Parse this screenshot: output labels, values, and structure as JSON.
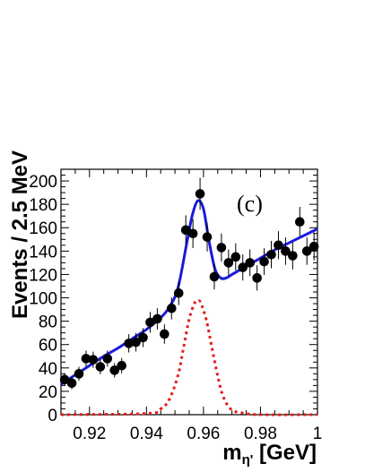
{
  "chart_data": {
    "type": "scatter",
    "panel_label": "(c)",
    "xlabel_main": "m",
    "xlabel_sub": "η'",
    "xlabel_unit": " [GeV]",
    "ylabel": "Events / 2.5 MeV",
    "xlim": [
      0.91,
      1.0
    ],
    "ylim": [
      0,
      210
    ],
    "x_ticks": [
      0.92,
      0.94,
      0.96,
      0.98,
      1.0
    ],
    "x_tick_labels": [
      "0.92",
      "0.94",
      "0.96",
      "0.98",
      "1"
    ],
    "y_ticks": [
      0,
      20,
      40,
      60,
      80,
      100,
      120,
      140,
      160,
      180,
      200
    ],
    "y_tick_labels": [
      "0",
      "20",
      "40",
      "60",
      "80",
      "100",
      "120",
      "140",
      "160",
      "180",
      "200"
    ],
    "grid": false,
    "legend": "none",
    "colors": {
      "data": "#000000",
      "fit": "#1a1adc",
      "signal": "#e61919"
    },
    "series": [
      {
        "kind": "data-points-with-errors",
        "x": [
          0.9113,
          0.9138,
          0.9163,
          0.9188,
          0.9213,
          0.9238,
          0.9263,
          0.9288,
          0.9313,
          0.9338,
          0.9363,
          0.9388,
          0.9413,
          0.9438,
          0.9463,
          0.9488,
          0.9513,
          0.9538,
          0.9563,
          0.9588,
          0.9613,
          0.9638,
          0.9663,
          0.9688,
          0.9713,
          0.9738,
          0.9763,
          0.9788,
          0.9813,
          0.9838,
          0.9863,
          0.9888,
          0.9913,
          0.9938,
          0.9963,
          0.9988
        ],
        "y": [
          30,
          27,
          35,
          48,
          47,
          41,
          48,
          38,
          42,
          61,
          62,
          66,
          79,
          82,
          69,
          91,
          104,
          158,
          155,
          189,
          152,
          118,
          143,
          130,
          135,
          126,
          130,
          117,
          131,
          137,
          145,
          140,
          136,
          165,
          140,
          144
        ],
        "yerr": [
          5.5,
          5.2,
          5.9,
          6.9,
          6.9,
          6.4,
          6.9,
          6.2,
          6.5,
          7.8,
          7.9,
          8.1,
          8.9,
          9.1,
          8.3,
          9.5,
          10.2,
          12.6,
          12.4,
          13.7,
          12.3,
          10.9,
          12.0,
          11.4,
          11.6,
          11.2,
          11.4,
          10.8,
          11.4,
          11.7,
          12.0,
          11.8,
          11.7,
          12.8,
          11.8,
          12.0
        ]
      },
      {
        "kind": "fit-total",
        "x": [
          0.91,
          0.915,
          0.92,
          0.925,
          0.93,
          0.935,
          0.94,
          0.945,
          0.948,
          0.951,
          0.954,
          0.956,
          0.958,
          0.96,
          0.962,
          0.964,
          0.966,
          0.968,
          0.97,
          0.975,
          0.98,
          0.985,
          0.99,
          0.995,
          1.0
        ],
        "y": [
          26,
          34,
          42,
          50,
          57,
          65,
          73,
          83,
          92,
          108,
          145,
          170,
          183,
          176,
          148,
          125,
          117,
          117,
          120,
          127,
          134,
          141,
          147,
          153,
          159
        ]
      },
      {
        "kind": "signal-component",
        "x": [
          0.91,
          0.94,
          0.945,
          0.948,
          0.951,
          0.953,
          0.955,
          0.957,
          0.958,
          0.959,
          0.961,
          0.963,
          0.965,
          0.967,
          0.97,
          0.975,
          0.98,
          1.0
        ],
        "y": [
          0,
          1,
          5,
          13,
          33,
          57,
          82,
          96,
          97,
          96,
          81,
          57,
          33,
          15,
          4,
          1,
          0,
          0
        ]
      }
    ]
  }
}
